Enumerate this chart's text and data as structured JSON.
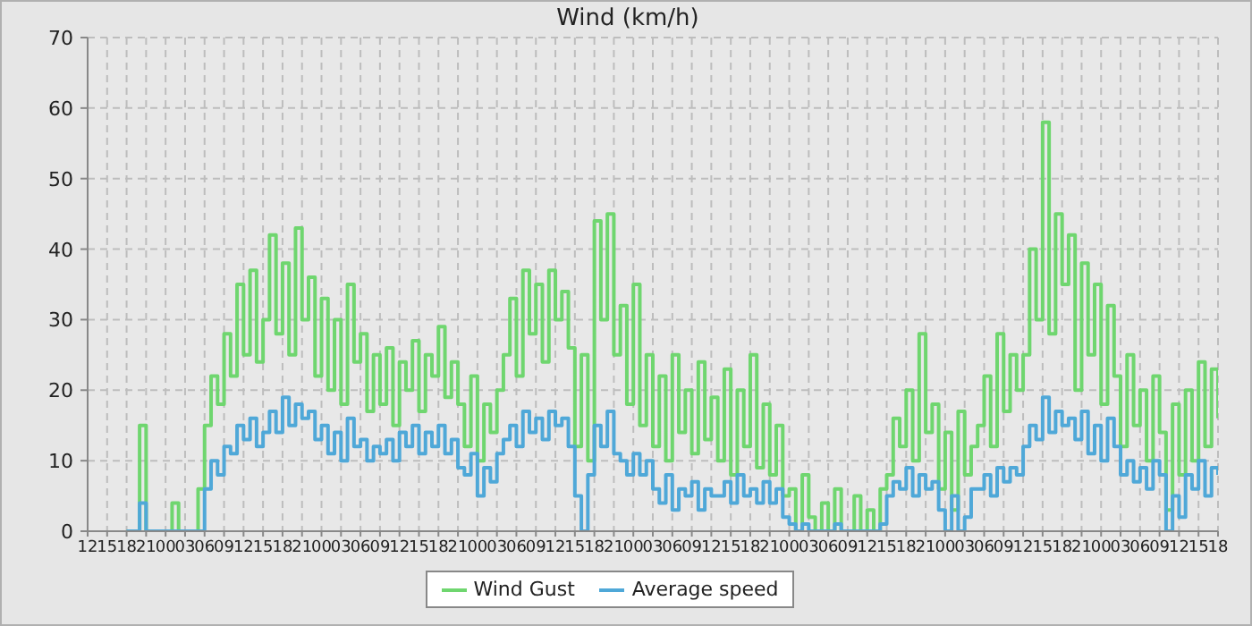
{
  "chart_data": {
    "type": "step",
    "title": "Wind (km/h)",
    "x": [
      18,
      19,
      20,
      21,
      22,
      23,
      24,
      25,
      26,
      27,
      28,
      29,
      30,
      31,
      32,
      33,
      34,
      35,
      36,
      37,
      38,
      39,
      40,
      41,
      42,
      43,
      44,
      45,
      46,
      47,
      48,
      49,
      50,
      51,
      52,
      53,
      54,
      55,
      56,
      57,
      58,
      59,
      60,
      61,
      62,
      63,
      64,
      65,
      66,
      67,
      68,
      69,
      70,
      71,
      72,
      73,
      74,
      75,
      76,
      77,
      78,
      79,
      80,
      81,
      82,
      83,
      84,
      85,
      86,
      87,
      88,
      89,
      90,
      91,
      92,
      93,
      94,
      95,
      96,
      97,
      98,
      99,
      100,
      101,
      102,
      103,
      104,
      105,
      106,
      107,
      108,
      109,
      110,
      111,
      112,
      113,
      114,
      115,
      116,
      117,
      118,
      119,
      120,
      121,
      122,
      123,
      124,
      125,
      126,
      127,
      128,
      129,
      130,
      131,
      132,
      133,
      134,
      135,
      136,
      137,
      138,
      139,
      140,
      141,
      142,
      143,
      144,
      145,
      146,
      147,
      148,
      149,
      150,
      151,
      152,
      153,
      154,
      155,
      156,
      157,
      158,
      159,
      160,
      161,
      162,
      163,
      164,
      165,
      166,
      167,
      168,
      169,
      170,
      171,
      172,
      173,
      174,
      175,
      176,
      177,
      178,
      179,
      180,
      181,
      182,
      183,
      184,
      185,
      186
    ],
    "series": [
      {
        "name": "Wind Gust",
        "color": "#6fd66f",
        "values": [
          0,
          0,
          15,
          0,
          0,
          0,
          0,
          4,
          0,
          0,
          0,
          6,
          15,
          22,
          18,
          28,
          22,
          35,
          25,
          37,
          24,
          30,
          42,
          28,
          38,
          25,
          43,
          30,
          36,
          22,
          33,
          20,
          30,
          18,
          35,
          24,
          28,
          17,
          25,
          18,
          26,
          15,
          24,
          20,
          27,
          17,
          25,
          22,
          29,
          19,
          24,
          18,
          12,
          22,
          10,
          18,
          14,
          20,
          25,
          33,
          22,
          37,
          28,
          35,
          24,
          37,
          30,
          34,
          26,
          12,
          25,
          10,
          44,
          30,
          45,
          25,
          32,
          18,
          35,
          15,
          25,
          12,
          22,
          10,
          25,
          14,
          20,
          11,
          24,
          13,
          19,
          10,
          23,
          8,
          20,
          12,
          25,
          9,
          18,
          8,
          15,
          5,
          6,
          0,
          8,
          2,
          0,
          4,
          0,
          6,
          0,
          0,
          5,
          0,
          3,
          0,
          6,
          8,
          16,
          12,
          20,
          10,
          28,
          14,
          18,
          6,
          14,
          3,
          17,
          8,
          12,
          15,
          22,
          12,
          28,
          17,
          25,
          20,
          25,
          40,
          30,
          58,
          28,
          45,
          35,
          42,
          20,
          38,
          25,
          35,
          18,
          32,
          22,
          12,
          25,
          15,
          20,
          10,
          22,
          14,
          3,
          18,
          8,
          20,
          10,
          24,
          12,
          23,
          16
        ]
      },
      {
        "name": "Average speed",
        "color": "#4fa8d8",
        "values": [
          0,
          0,
          4,
          0,
          0,
          0,
          0,
          0,
          0,
          0,
          0,
          0,
          6,
          10,
          8,
          12,
          11,
          15,
          13,
          16,
          12,
          14,
          17,
          14,
          19,
          15,
          18,
          16,
          17,
          13,
          15,
          11,
          14,
          10,
          16,
          12,
          13,
          10,
          12,
          11,
          13,
          10,
          14,
          12,
          15,
          11,
          14,
          12,
          15,
          11,
          13,
          9,
          8,
          11,
          5,
          9,
          7,
          11,
          13,
          15,
          12,
          17,
          14,
          16,
          13,
          17,
          15,
          16,
          12,
          5,
          0,
          8,
          15,
          12,
          17,
          11,
          10,
          8,
          11,
          8,
          10,
          6,
          4,
          8,
          3,
          6,
          5,
          7,
          3,
          6,
          5,
          5,
          7,
          4,
          8,
          5,
          6,
          4,
          7,
          4,
          6,
          2,
          1,
          0,
          1,
          0,
          0,
          0,
          0,
          1,
          0,
          0,
          0,
          0,
          0,
          0,
          1,
          5,
          7,
          6,
          9,
          5,
          8,
          6,
          7,
          3,
          0,
          5,
          0,
          2,
          6,
          6,
          8,
          5,
          9,
          7,
          9,
          8,
          12,
          15,
          13,
          19,
          14,
          17,
          15,
          16,
          13,
          17,
          11,
          15,
          10,
          16,
          12,
          8,
          10,
          7,
          9,
          6,
          10,
          8,
          0,
          5,
          2,
          8,
          6,
          10,
          5,
          9,
          8
        ]
      }
    ],
    "xlim": [
      12,
      186
    ],
    "xticks": [
      {
        "value": 12,
        "label": "12"
      },
      {
        "value": 15,
        "label": "15"
      },
      {
        "value": 18,
        "label": "18"
      },
      {
        "value": 21,
        "label": "21"
      },
      {
        "value": 24,
        "label": "00"
      },
      {
        "value": 27,
        "label": "03"
      },
      {
        "value": 30,
        "label": "06"
      },
      {
        "value": 33,
        "label": "09"
      },
      {
        "value": 36,
        "label": "12"
      },
      {
        "value": 39,
        "label": "15"
      },
      {
        "value": 42,
        "label": "18"
      },
      {
        "value": 45,
        "label": "21"
      },
      {
        "value": 48,
        "label": "00"
      },
      {
        "value": 51,
        "label": "03"
      },
      {
        "value": 54,
        "label": "06"
      },
      {
        "value": 57,
        "label": "09"
      },
      {
        "value": 60,
        "label": "12"
      },
      {
        "value": 63,
        "label": "15"
      },
      {
        "value": 66,
        "label": "18"
      },
      {
        "value": 69,
        "label": "21"
      },
      {
        "value": 72,
        "label": "00"
      },
      {
        "value": 75,
        "label": "03"
      },
      {
        "value": 78,
        "label": "06"
      },
      {
        "value": 81,
        "label": "09"
      },
      {
        "value": 84,
        "label": "12"
      },
      {
        "value": 87,
        "label": "15"
      },
      {
        "value": 90,
        "label": "18"
      },
      {
        "value": 93,
        "label": "21"
      },
      {
        "value": 96,
        "label": "00"
      },
      {
        "value": 99,
        "label": "03"
      },
      {
        "value": 102,
        "label": "06"
      },
      {
        "value": 105,
        "label": "09"
      },
      {
        "value": 108,
        "label": "12"
      },
      {
        "value": 111,
        "label": "15"
      },
      {
        "value": 114,
        "label": "18"
      },
      {
        "value": 117,
        "label": "21"
      },
      {
        "value": 120,
        "label": "00"
      },
      {
        "value": 123,
        "label": "03"
      },
      {
        "value": 126,
        "label": "06"
      },
      {
        "value": 129,
        "label": "09"
      },
      {
        "value": 132,
        "label": "12"
      },
      {
        "value": 135,
        "label": "15"
      },
      {
        "value": 138,
        "label": "18"
      },
      {
        "value": 141,
        "label": "21"
      },
      {
        "value": 144,
        "label": "00"
      },
      {
        "value": 147,
        "label": "03"
      },
      {
        "value": 150,
        "label": "06"
      },
      {
        "value": 153,
        "label": "09"
      },
      {
        "value": 156,
        "label": "12"
      },
      {
        "value": 159,
        "label": "15"
      },
      {
        "value": 162,
        "label": "18"
      },
      {
        "value": 165,
        "label": "21"
      },
      {
        "value": 168,
        "label": "00"
      },
      {
        "value": 171,
        "label": "03"
      },
      {
        "value": 174,
        "label": "06"
      },
      {
        "value": 177,
        "label": "09"
      },
      {
        "value": 180,
        "label": "12"
      },
      {
        "value": 183,
        "label": "15"
      },
      {
        "value": 186,
        "label": "18"
      }
    ],
    "ylim": [
      0,
      70
    ],
    "yticks": [
      0,
      10,
      20,
      30,
      40,
      50,
      60,
      70
    ],
    "grid": true,
    "legend": "bottom",
    "marker": "none"
  }
}
